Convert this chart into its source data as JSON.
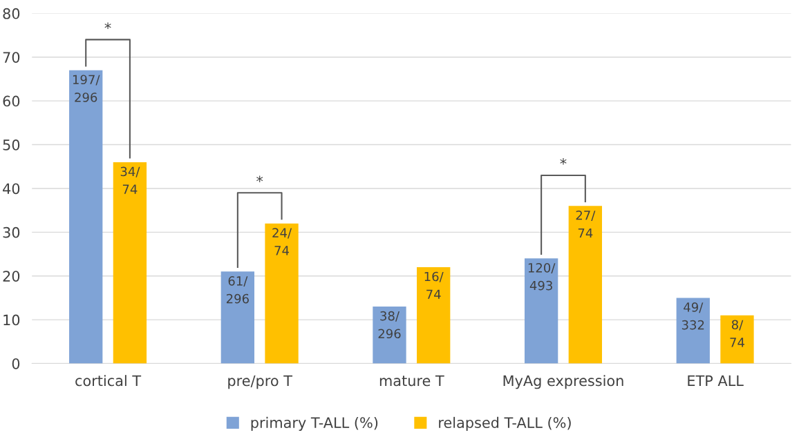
{
  "chart_data": {
    "type": "bar",
    "categories": [
      "cortical T",
      "pre/pro T",
      "mature T",
      "MyAg expression",
      "ETP ALL"
    ],
    "series": [
      {
        "name": "primary T-ALL (%)",
        "color": "#7fa3d6",
        "values": [
          67,
          21,
          13,
          24,
          15
        ],
        "value_labels": [
          "197/\n296",
          "61/\n296",
          "38/\n296",
          "120/\n493",
          "49/\n332"
        ]
      },
      {
        "name": "relapsed T-ALL (%)",
        "color": "#ffc000",
        "values": [
          46,
          32,
          22,
          36,
          11
        ],
        "value_labels": [
          "34/\n74",
          "24/\n74",
          "16/\n74",
          "27/\n74",
          "8/\n74"
        ]
      }
    ],
    "ylim": [
      0,
      80
    ],
    "yticks": [
      0,
      10,
      20,
      30,
      40,
      50,
      60,
      70,
      80
    ],
    "grid": "y",
    "legend": "bottom",
    "annotations": [
      "*",
      "*",
      "*"
    ]
  }
}
